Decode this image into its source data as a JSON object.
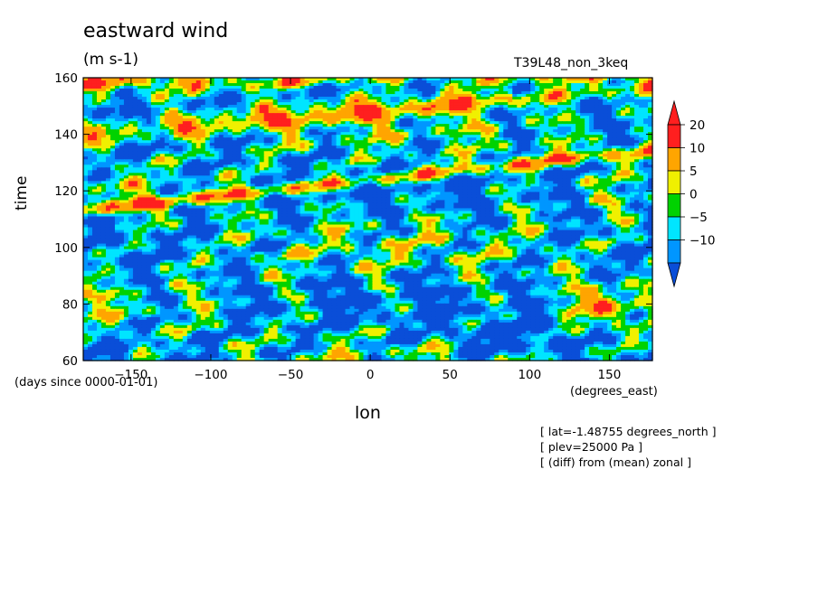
{
  "chart_data": {
    "type": "heatmap",
    "title": "eastward wind",
    "units": "(m s-1)",
    "run_label": "T39L48_non_3keq",
    "xlabel": "lon",
    "ylabel": "time",
    "x_units": "(degrees_east)",
    "y_units": "(days since 0000-01-01)",
    "xlim": [
      -180,
      177
    ],
    "ylim": [
      60,
      160
    ],
    "x_ticks": [
      -150,
      -100,
      -50,
      0,
      50,
      100,
      150
    ],
    "y_ticks": [
      60,
      80,
      100,
      120,
      140,
      160
    ],
    "notes": [
      "[ lat=-1.48755 degrees_north ]",
      "[ plev=25000 Pa ]",
      "[ (diff) from (mean) zonal ]"
    ],
    "colorbar": {
      "levels": [
        -10,
        -5,
        0,
        5,
        10,
        20
      ],
      "colors": [
        "#1f7be0",
        "#0096ff",
        "#00e5ff",
        "#00d200",
        "#f0f000",
        "#ffa500",
        "#ff1f1f",
        "#0a4ed8"
      ]
    }
  }
}
